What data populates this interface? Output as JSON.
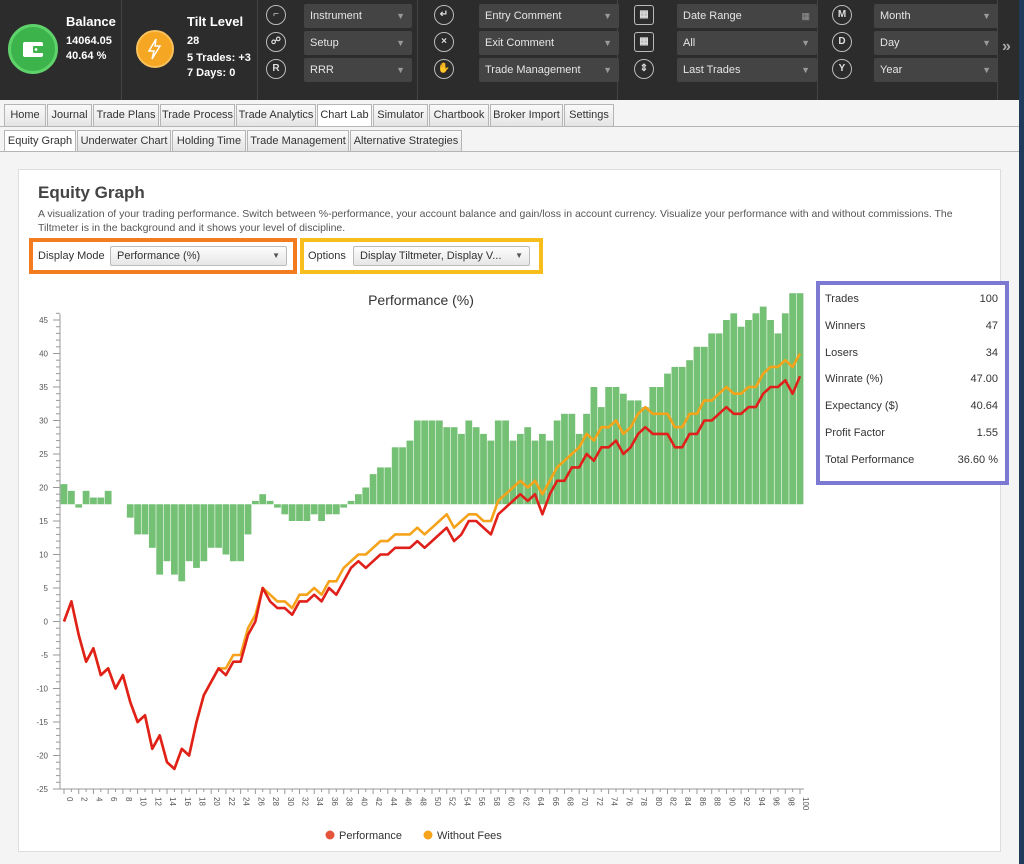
{
  "topbar": {
    "balance": {
      "title": "Balance",
      "amount": "14064.05",
      "percent": "40.64 %",
      "icon": "wallet-icon",
      "color": "#3cb44b"
    },
    "tilt": {
      "title": "Tilt Level",
      "value": "28",
      "trades_line": "5 Trades: +3",
      "days_line": "7 Days: 0",
      "icon": "lightning-icon",
      "color": "#f5a623"
    },
    "filters": [
      {
        "icon": "instrument-icon",
        "label": "Instrument"
      },
      {
        "icon": "setup-icon",
        "label": "Setup"
      },
      {
        "icon": "R",
        "label": "RRR"
      },
      {
        "icon": "entry-comment-icon",
        "label": "Entry Comment"
      },
      {
        "icon": "×",
        "label": "Exit Comment"
      },
      {
        "icon": "trade-management-icon",
        "label": "Trade Management"
      },
      {
        "icon": "calendar-icon",
        "label": "Date Range"
      },
      {
        "icon": "calendar-icon",
        "label": "All"
      },
      {
        "icon": "last-trades-icon",
        "label": "Last Trades"
      },
      {
        "icon": "M",
        "label": "Month"
      },
      {
        "icon": "D",
        "label": "Day"
      },
      {
        "icon": "Y",
        "label": "Year"
      }
    ],
    "more": "»"
  },
  "tabs": [
    "Home",
    "Journal",
    "Trade Plans",
    "Trade Process",
    "Trade Analytics",
    "Chart Lab",
    "Simulator",
    "Chartbook",
    "Broker Import",
    "Settings"
  ],
  "active_tab": "Chart Lab",
  "subtabs": [
    "Equity Graph",
    "Underwater Chart",
    "Holding Time",
    "Trade Management",
    "Alternative Strategies"
  ],
  "active_subtab": "Equity Graph",
  "page": {
    "title": "Equity Graph",
    "description": "A visualization of your trading performance. Switch between %-performance, your account balance and gain/loss in account currency. Visualize your performance with and without commissions. The Tiltmeter is in the background and it shows your level of discipline.",
    "display_mode_label": "Display Mode",
    "display_mode_value": "Performance (%)",
    "options_label": "Options",
    "options_value": "Display Tiltmeter, Display V..."
  },
  "highlight_colors": {
    "display_mode": "#f47c20",
    "options": "#f7be1e",
    "stats": "#7b79d1"
  },
  "stats": [
    {
      "label": "Trades",
      "value": "100"
    },
    {
      "label": "Winners",
      "value": "47"
    },
    {
      "label": "Losers",
      "value": "34"
    },
    {
      "label": "Winrate (%)",
      "value": "47.00"
    },
    {
      "label": "Expectancy ($)",
      "value": "40.64"
    },
    {
      "label": "Profit Factor",
      "value": "1.55"
    },
    {
      "label": "Total Performance",
      "value": "36.60 %"
    }
  ],
  "chart_data": {
    "type": "line",
    "title": "Performance (%)",
    "xlabel": "",
    "ylabel": "",
    "x": [
      0,
      1,
      2,
      3,
      4,
      5,
      6,
      7,
      8,
      9,
      10,
      11,
      12,
      13,
      14,
      15,
      16,
      17,
      18,
      19,
      20,
      21,
      22,
      23,
      24,
      25,
      26,
      27,
      28,
      29,
      30,
      31,
      32,
      33,
      34,
      35,
      36,
      37,
      38,
      39,
      40,
      41,
      42,
      43,
      44,
      45,
      46,
      47,
      48,
      49,
      50,
      51,
      52,
      53,
      54,
      55,
      56,
      57,
      58,
      59,
      60,
      61,
      62,
      63,
      64,
      65,
      66,
      67,
      68,
      69,
      70,
      71,
      72,
      73,
      74,
      75,
      76,
      77,
      78,
      79,
      80,
      81,
      82,
      83,
      84,
      85,
      86,
      87,
      88,
      89,
      90,
      91,
      92,
      93,
      94,
      95,
      96,
      97,
      98,
      99,
      100
    ],
    "xticks": [
      0,
      2,
      4,
      6,
      8,
      10,
      12,
      14,
      16,
      18,
      20,
      22,
      24,
      26,
      28,
      30,
      32,
      34,
      36,
      38,
      40,
      42,
      44,
      46,
      48,
      50,
      52,
      54,
      56,
      58,
      60,
      62,
      64,
      66,
      68,
      70,
      72,
      74,
      76,
      78,
      80,
      82,
      84,
      86,
      88,
      90,
      92,
      94,
      96,
      98,
      100
    ],
    "ylim": [
      -25,
      47
    ],
    "yticks": [
      -25,
      -20,
      -15,
      -10,
      -5,
      0,
      5,
      10,
      15,
      20,
      25,
      30,
      35,
      40,
      45
    ],
    "grid": false,
    "legend_position": "bottom",
    "series": [
      {
        "name": "Performance",
        "color": "#e0201a",
        "values": [
          0,
          3,
          -2,
          -6,
          -4,
          -8,
          -7,
          -10,
          -8,
          -12,
          -15,
          -14,
          -19,
          -17,
          -21,
          -22,
          -19,
          -20,
          -15,
          -11,
          -9,
          -7,
          -8,
          -6,
          -6,
          -2,
          0,
          5,
          3,
          2,
          2,
          1,
          3,
          3,
          4,
          3,
          5,
          4,
          6,
          8,
          9,
          8,
          9,
          10,
          10,
          11,
          11,
          11,
          12,
          11,
          12,
          13,
          14,
          12,
          13,
          15,
          15,
          14,
          13,
          16,
          17,
          18,
          19,
          18,
          19,
          16,
          19,
          21,
          21,
          23,
          23,
          25,
          24,
          26,
          26,
          27,
          25,
          26,
          28,
          29,
          28,
          28,
          28,
          26,
          26,
          28,
          28,
          30,
          30,
          31,
          32,
          31,
          31,
          32,
          32,
          34,
          35,
          35,
          36,
          34,
          36.6
        ]
      },
      {
        "name": "Without Fees",
        "color": "#f5a31a",
        "values": [
          0,
          3,
          -2,
          -6,
          -4,
          -8,
          -7,
          -10,
          -8,
          -12,
          -15,
          -14,
          -19,
          -17,
          -21,
          -22,
          -19,
          -20,
          -15,
          -11,
          -9,
          -7,
          -7,
          -5,
          -5,
          -1,
          1,
          5,
          4,
          3,
          3,
          2,
          4,
          4,
          5,
          4,
          6,
          6,
          8,
          9,
          10,
          10,
          11,
          12,
          12,
          13,
          13,
          13,
          14,
          13,
          14,
          15,
          16,
          14,
          15,
          16,
          16,
          15,
          15,
          18,
          19,
          20,
          21,
          20,
          21,
          19,
          21,
          23,
          24,
          25,
          26,
          28,
          27,
          29,
          29,
          30,
          28,
          29,
          31,
          32,
          31,
          31,
          31,
          29,
          29,
          31,
          31,
          33,
          33,
          34,
          35,
          34,
          34,
          35,
          35,
          37,
          38,
          38,
          39,
          38,
          40
        ]
      }
    ],
    "background_series": {
      "name": "Tiltmeter",
      "color": "#74c074",
      "baseline": 17.5,
      "values": [
        20.5,
        19.5,
        17,
        19.5,
        18.5,
        18.5,
        19.5,
        17.5,
        17.5,
        15.5,
        13,
        13,
        11,
        7,
        9,
        7,
        6,
        9,
        8,
        9,
        11,
        11,
        10,
        9,
        9,
        13,
        18,
        19,
        18,
        17,
        16,
        15,
        15,
        15,
        16,
        15,
        16,
        16,
        17,
        18,
        19,
        20,
        22,
        23,
        23,
        26,
        26,
        27,
        30,
        30,
        30,
        30,
        29,
        29,
        28,
        30,
        29,
        28,
        27,
        30,
        30,
        27,
        28,
        29,
        27,
        28,
        27,
        30,
        31,
        31,
        28,
        31,
        35,
        32,
        35,
        35,
        34,
        33,
        33,
        32,
        35,
        35,
        37,
        38,
        38,
        39,
        41,
        41,
        43,
        43,
        45,
        46,
        44,
        45,
        46,
        47,
        45,
        43,
        46,
        49,
        49
      ]
    }
  }
}
